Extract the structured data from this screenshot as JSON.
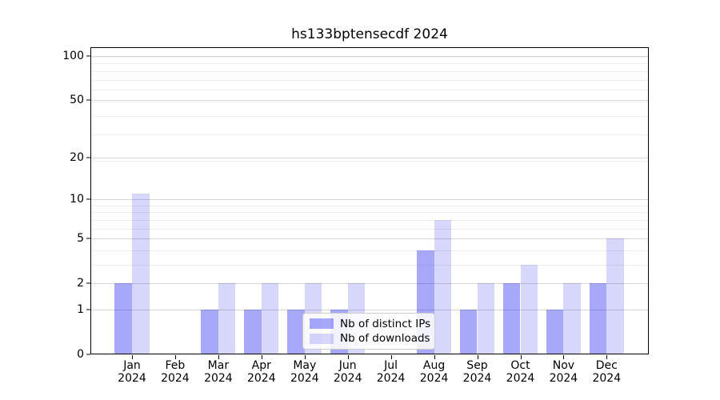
{
  "chart_data": {
    "type": "bar",
    "title": "hs133bptensecdf 2024",
    "categories": [
      "Jan",
      "Feb",
      "Mar",
      "Apr",
      "May",
      "Jun",
      "Jul",
      "Aug",
      "Sep",
      "Oct",
      "Nov",
      "Dec"
    ],
    "category_year": "2024",
    "series": [
      {
        "name": "Nb of distinct IPs",
        "color": "rgba(0,0,238,0.34)",
        "values": [
          2,
          0,
          1,
          1,
          1,
          1,
          0,
          4,
          1,
          2,
          1,
          2
        ]
      },
      {
        "name": "Nb of downloads",
        "color": "rgba(0,0,238,0.155)",
        "values": [
          11,
          0,
          2,
          2,
          2,
          2,
          0,
          7,
          2,
          3,
          2,
          5
        ]
      }
    ],
    "yscale": "log1p",
    "yticks": [
      0,
      1,
      2,
      5,
      10,
      20,
      50,
      100
    ],
    "ylim": [
      0,
      100
    ],
    "grid": true,
    "legend_position": "lower-center-inside"
  },
  "colors": {
    "bar_distinct_ips": "rgba(0,0,238,0.34)",
    "bar_downloads": "rgba(0,0,238,0.155)",
    "major_grid": "#d6d6d6",
    "minor_grid": "#efefef",
    "axis": "#000000",
    "legend_border": "#cccccc",
    "legend_background": "rgba(255,255,255,0.85)"
  }
}
